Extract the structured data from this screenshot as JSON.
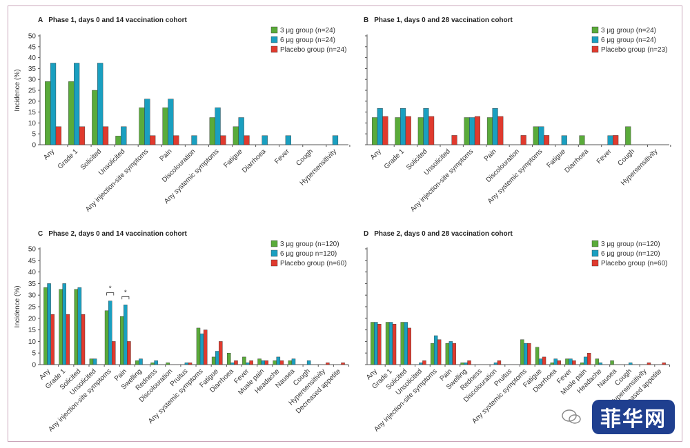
{
  "colors": {
    "g3": "#5aab3a",
    "g6": "#1a9fc0",
    "placebo": "#e03a2e",
    "axis": "#555555"
  },
  "watermark": {
    "text": "菲华网"
  },
  "chart_data": [
    {
      "id": "A",
      "type": "bar",
      "letter": "A",
      "title": "Phase 1, days 0 and 14 vaccination cohort",
      "ylabel": "Incidence (%)",
      "ylim": [
        0,
        50
      ],
      "yticks": [
        0,
        5,
        10,
        15,
        20,
        25,
        30,
        35,
        40,
        45,
        50
      ],
      "categories": [
        "Any",
        "Grade 1",
        "Solicited",
        "Unsolicited",
        "Any injection-site symptoms",
        "Pain",
        "Discolouration",
        "Any systemic symptoms",
        "Fatigue",
        "Diarrhoea",
        "Fever",
        "Cough",
        "Hypersensitivity"
      ],
      "series": [
        {
          "name": "3 μg group (n=24)",
          "color": "g3",
          "values": [
            29,
            29,
            25,
            4,
            17,
            17,
            0,
            12.5,
            8.3,
            0,
            0,
            0,
            0
          ]
        },
        {
          "name": "6 μg group (n=24)",
          "color": "g6",
          "values": [
            37.5,
            37.5,
            37.5,
            8.3,
            21,
            21,
            4.2,
            17,
            12.5,
            4.2,
            4.2,
            0,
            4.2
          ]
        },
        {
          "name": "Placebo group (n=24)",
          "color": "placebo",
          "values": [
            8.3,
            8.3,
            8.3,
            0,
            4.2,
            4.2,
            0,
            4.2,
            4.2,
            0,
            0,
            0,
            0
          ]
        }
      ],
      "annotations": []
    },
    {
      "id": "B",
      "type": "bar",
      "letter": "B",
      "title": "Phase 1, days 0 and 28 vaccination cohort",
      "ylabel": "",
      "ylim": [
        0,
        50
      ],
      "yticks": [],
      "categories": [
        "Any",
        "Grade 1",
        "Solicited",
        "Unsolicited",
        "Any injection-site symptoms",
        "Pain",
        "Discolouration",
        "Any systemic symptoms",
        "Fatigue",
        "Diarrhoea",
        "Fever",
        "Cough",
        "Hypersensitivity"
      ],
      "series": [
        {
          "name": "3 μg group (n=24)",
          "color": "g3",
          "values": [
            12.5,
            12.5,
            12.5,
            0,
            12.5,
            12.5,
            0,
            8.3,
            0,
            4.2,
            0,
            8.3,
            0
          ]
        },
        {
          "name": "6 μg group (n=24)",
          "color": "g6",
          "values": [
            16.7,
            16.7,
            16.7,
            0,
            12.5,
            16.7,
            0,
            8.3,
            4.2,
            0,
            4.2,
            0,
            0
          ]
        },
        {
          "name": "Placebo group (n=23)",
          "color": "placebo",
          "values": [
            13,
            13,
            13,
            4.3,
            13,
            13,
            4.3,
            4.3,
            0,
            0,
            4.3,
            0,
            0
          ]
        }
      ],
      "annotations": []
    },
    {
      "id": "C",
      "type": "bar",
      "letter": "C",
      "title": "Phase 2, days 0 and 14 vaccination cohort",
      "ylabel": "Incidence (%)",
      "ylim": [
        0,
        50
      ],
      "yticks": [
        0,
        5,
        10,
        15,
        20,
        25,
        30,
        35,
        40,
        45,
        50
      ],
      "categories": [
        "Any",
        "Grade 1",
        "Solicited",
        "Unsolicited",
        "Any injection-site symptoms",
        "Pain",
        "Swelling",
        "Redness",
        "Discolouration",
        "Pruitus",
        "Any systemic symptoms",
        "Fatigue",
        "Diarrhoea",
        "Fever",
        "Musle pain",
        "Headache",
        "Nausea",
        "Cough",
        "Hypersensitivity",
        "Decreased appetite"
      ],
      "series": [
        {
          "name": "3 μg group (n=120)",
          "color": "g3",
          "values": [
            33.3,
            32.5,
            32.5,
            2.5,
            23.3,
            20.8,
            1.7,
            0.8,
            0.8,
            0,
            15.8,
            3.3,
            5,
            3.3,
            2.5,
            1.7,
            1.7,
            0,
            0,
            0
          ]
        },
        {
          "name": "6 μg group n=120)",
          "color": "g6",
          "values": [
            35,
            35,
            33.3,
            2.5,
            27.5,
            25.8,
            2.5,
            1.7,
            0,
            0.8,
            13.3,
            5.8,
            0.8,
            0.8,
            1.7,
            3.3,
            2.5,
            1.7,
            0,
            0
          ]
        },
        {
          "name": "Placebo group (n=60)",
          "color": "placebo",
          "values": [
            21.7,
            21.7,
            21.7,
            0,
            10,
            10,
            0,
            0,
            0,
            0.8,
            15,
            10,
            1.7,
            1.7,
            1.7,
            1.7,
            0,
            0,
            0.8,
            0.8
          ]
        }
      ],
      "annotations": [
        {
          "text": "*",
          "from_category": 4,
          "to_series": "placebo"
        },
        {
          "text": "*",
          "from_category": 5,
          "to_series": "placebo"
        }
      ]
    },
    {
      "id": "D",
      "type": "bar",
      "letter": "D",
      "title": "Phase 2, days 0 and 28 vaccination cohort",
      "ylabel": "",
      "ylim": [
        0,
        50
      ],
      "yticks": [],
      "categories": [
        "Any",
        "Grade 1",
        "Solicited",
        "Unsolicited",
        "Any injection-site symptoms",
        "Pain",
        "Swelling",
        "Redness",
        "Discolouration",
        "Pruitus",
        "Any systemic symptoms",
        "Fatigue",
        "Diarrhoea",
        "Fever",
        "Musle pain",
        "Headache",
        "Nausea",
        "Cough",
        "Hypersensitivity",
        "Decreased appetite"
      ],
      "series": [
        {
          "name": "3 μg group (n=120)",
          "color": "g3",
          "values": [
            18.3,
            18.3,
            18.3,
            0,
            9.2,
            9.2,
            0.8,
            0,
            0,
            0,
            10.8,
            7.5,
            0.8,
            2.5,
            0.8,
            2.5,
            1.7,
            0,
            0,
            0
          ]
        },
        {
          "name": "6 μg group (n=120)",
          "color": "g6",
          "values": [
            18.3,
            18.3,
            18.3,
            0.8,
            12.5,
            10,
            0.8,
            0,
            0.8,
            0,
            9.2,
            2.5,
            2.5,
            2.5,
            3.3,
            0.8,
            0,
            0.8,
            0,
            0
          ]
        },
        {
          "name": "Placebo group (n=60)",
          "color": "placebo",
          "values": [
            17.5,
            17.5,
            15.8,
            1.7,
            10.8,
            9.2,
            1.7,
            0,
            1.7,
            0,
            9.2,
            3.3,
            1.7,
            1.7,
            5,
            0,
            0,
            0,
            0.8,
            0.8
          ]
        }
      ],
      "annotations": []
    }
  ]
}
